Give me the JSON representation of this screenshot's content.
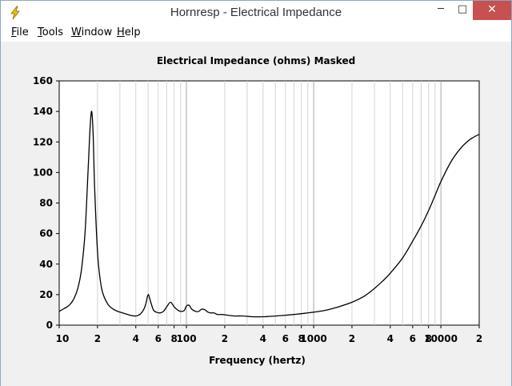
{
  "window": {
    "title": "Hornresp - Electrical Impedance",
    "controls": {
      "minimize": "─",
      "maximize": "□",
      "close": "✕"
    }
  },
  "menu": [
    {
      "key": "F",
      "rest": "ile"
    },
    {
      "key": "T",
      "rest": "ools"
    },
    {
      "key": "W",
      "rest": "indow"
    },
    {
      "key": "H",
      "rest": "elp"
    }
  ],
  "chart_data": {
    "type": "line",
    "title": "Electrical Impedance (ohms)   Masked",
    "xlabel": "Frequency (hertz)",
    "ylabel": "",
    "xscale": "log",
    "xlim": [
      10,
      20000
    ],
    "ylim": [
      0,
      160
    ],
    "grid": true,
    "yticks": [
      0,
      20,
      40,
      60,
      80,
      100,
      120,
      140,
      160
    ],
    "xtick_labels": [
      {
        "x": 10,
        "label": "10"
      },
      {
        "x": 20,
        "label": "2"
      },
      {
        "x": 40,
        "label": "4"
      },
      {
        "x": 60,
        "label": "6"
      },
      {
        "x": 80,
        "label": "8"
      },
      {
        "x": 100,
        "label": "100"
      },
      {
        "x": 200,
        "label": "2"
      },
      {
        "x": 400,
        "label": "4"
      },
      {
        "x": 600,
        "label": "6"
      },
      {
        "x": 800,
        "label": "8"
      },
      {
        "x": 1000,
        "label": "1000"
      },
      {
        "x": 2000,
        "label": "2"
      },
      {
        "x": 4000,
        "label": "4"
      },
      {
        "x": 6000,
        "label": "6"
      },
      {
        "x": 8000,
        "label": "8"
      },
      {
        "x": 10000,
        "label": "10000"
      },
      {
        "x": 20000,
        "label": "2"
      }
    ],
    "series": [
      {
        "x": [
          10,
          11,
          12,
          13,
          14,
          15,
          16,
          17,
          17.5,
          18,
          18.5,
          19,
          20,
          21,
          22,
          24,
          26,
          28,
          30,
          33,
          36,
          40,
          43,
          46,
          48,
          50,
          52,
          55,
          58,
          62,
          66,
          70,
          75,
          80,
          85,
          90,
          96,
          100,
          105,
          110,
          118,
          125,
          132,
          140,
          148,
          155,
          165,
          175,
          190,
          210,
          240,
          280,
          330,
          400,
          500,
          600,
          700,
          800,
          1000,
          1200,
          1500,
          2000,
          2500,
          3000,
          3500,
          4000,
          5000,
          6000,
          7000,
          8000,
          9000,
          10000,
          12000,
          14000,
          16000,
          18000,
          20000
        ],
        "y": [
          9,
          11,
          13,
          17,
          24,
          37,
          62,
          108,
          130,
          140,
          124,
          90,
          48,
          30,
          21,
          14,
          11,
          9.5,
          8.5,
          7.5,
          6.5,
          6,
          7,
          10,
          14,
          20,
          16,
          10,
          8.5,
          8,
          9,
          12,
          15,
          12,
          10,
          9,
          9.5,
          12.5,
          13,
          10.5,
          9,
          9,
          10.5,
          10,
          8.5,
          8,
          8,
          7,
          7,
          6.5,
          6,
          6,
          5.5,
          5.5,
          6,
          6.5,
          7,
          7.5,
          8.5,
          9.5,
          11.5,
          15,
          19,
          24,
          29,
          34,
          44,
          55,
          65,
          75,
          85,
          94,
          107,
          115,
          120,
          123,
          125
        ]
      }
    ]
  }
}
